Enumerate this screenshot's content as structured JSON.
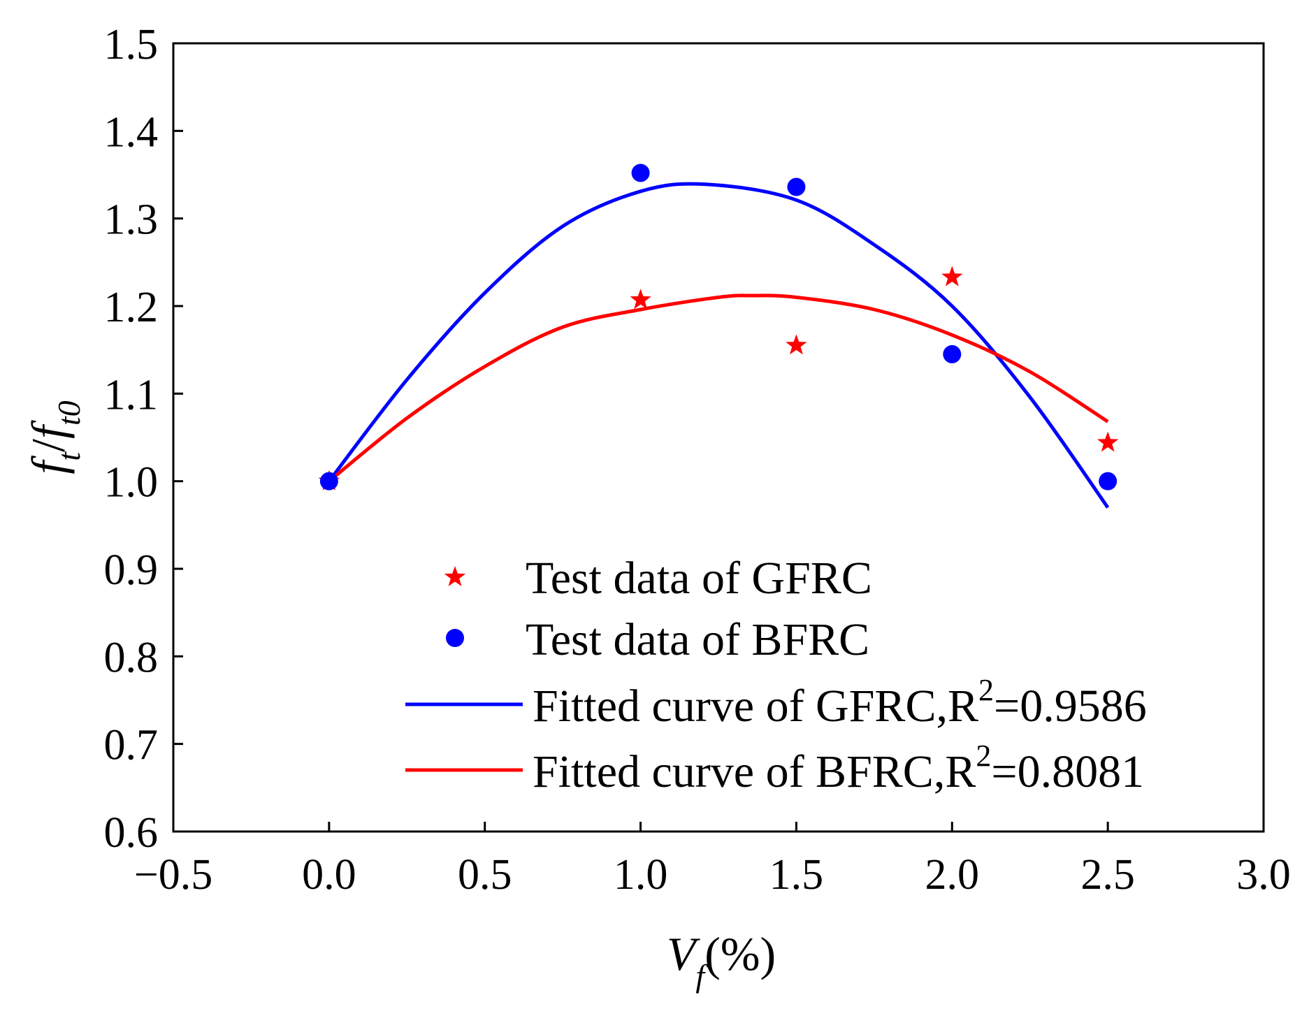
{
  "chart_data": {
    "type": "scatter",
    "xlabel": {
      "main": "V",
      "sub": "f",
      "suffix": "(%)"
    },
    "ylabel": {
      "f1": "f",
      "s1": "t",
      "slash": "/",
      "f2": "f",
      "s2": "t0"
    },
    "xlim": [
      -0.5,
      3.0
    ],
    "ylim": [
      0.6,
      1.5
    ],
    "xticks": [
      "−0.5",
      "0.0",
      "0.5",
      "1.0",
      "1.5",
      "2.0",
      "2.5",
      "3.0"
    ],
    "yticks": [
      "0.6",
      "0.7",
      "0.8",
      "0.9",
      "1.0",
      "1.1",
      "1.2",
      "1.3",
      "1.4",
      "1.5"
    ],
    "grid": false,
    "legend_position": "bottom-center",
    "series": [
      {
        "name": "Test data of GFRC",
        "kind": "scatter",
        "marker": "star",
        "color": "#ff0000",
        "x": [
          0.0,
          1.0,
          1.5,
          2.0,
          2.5
        ],
        "y": [
          1.0,
          1.207,
          1.155,
          1.233,
          1.044
        ]
      },
      {
        "name": "Test data of BFRC",
        "kind": "scatter",
        "marker": "circle",
        "color": "#0000ff",
        "x": [
          0.0,
          1.0,
          1.5,
          2.0,
          2.5
        ],
        "y": [
          1.0,
          1.352,
          1.336,
          1.145,
          1.0
        ]
      },
      {
        "name": "Fitted curve of GFRC,R",
        "sup": "2",
        "r2": "=0.9586",
        "kind": "line",
        "color": "#0000ff",
        "x": [
          0.0,
          0.25,
          0.5,
          0.75,
          1.0,
          1.21,
          1.5,
          1.75,
          2.0,
          2.25,
          2.5
        ],
        "y": [
          1.0,
          1.116,
          1.215,
          1.291,
          1.331,
          1.339,
          1.321,
          1.27,
          1.2,
          1.096,
          0.97
        ]
      },
      {
        "name": "Fitted curve of BFRC,R",
        "sup": "2",
        "r2": "=0.8081",
        "kind": "line",
        "color": "#ff0000",
        "x": [
          0.0,
          0.25,
          0.5,
          0.75,
          1.0,
          1.25,
          1.36,
          1.5,
          1.75,
          2.0,
          2.25,
          2.5
        ],
        "y": [
          1.0,
          1.072,
          1.131,
          1.176,
          1.196,
          1.21,
          1.212,
          1.21,
          1.196,
          1.167,
          1.125,
          1.068
        ]
      }
    ]
  }
}
